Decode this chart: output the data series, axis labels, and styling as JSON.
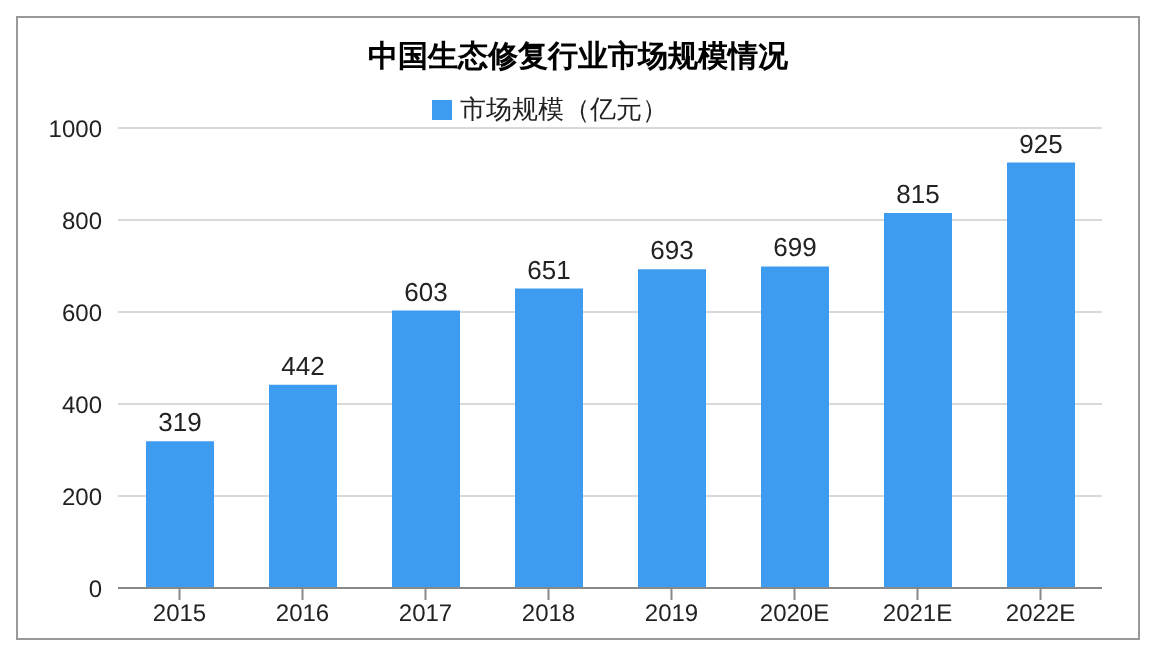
{
  "chart_data": {
    "type": "bar",
    "title": "中国生态修复行业市场规模情况",
    "categories": [
      "2015",
      "2016",
      "2017",
      "2018",
      "2019",
      "2020E",
      "2021E",
      "2022E"
    ],
    "series": [
      {
        "name": "市场规模（亿元）",
        "color": "#3e9cf0",
        "values": [
          319,
          442,
          603,
          651,
          693,
          699,
          815,
          925
        ]
      }
    ],
    "ylim": [
      0,
      1000
    ],
    "yticks": [
      0,
      200,
      400,
      600,
      800,
      1000
    ],
    "grid": "y",
    "legend": "top",
    "data_labels": true
  }
}
